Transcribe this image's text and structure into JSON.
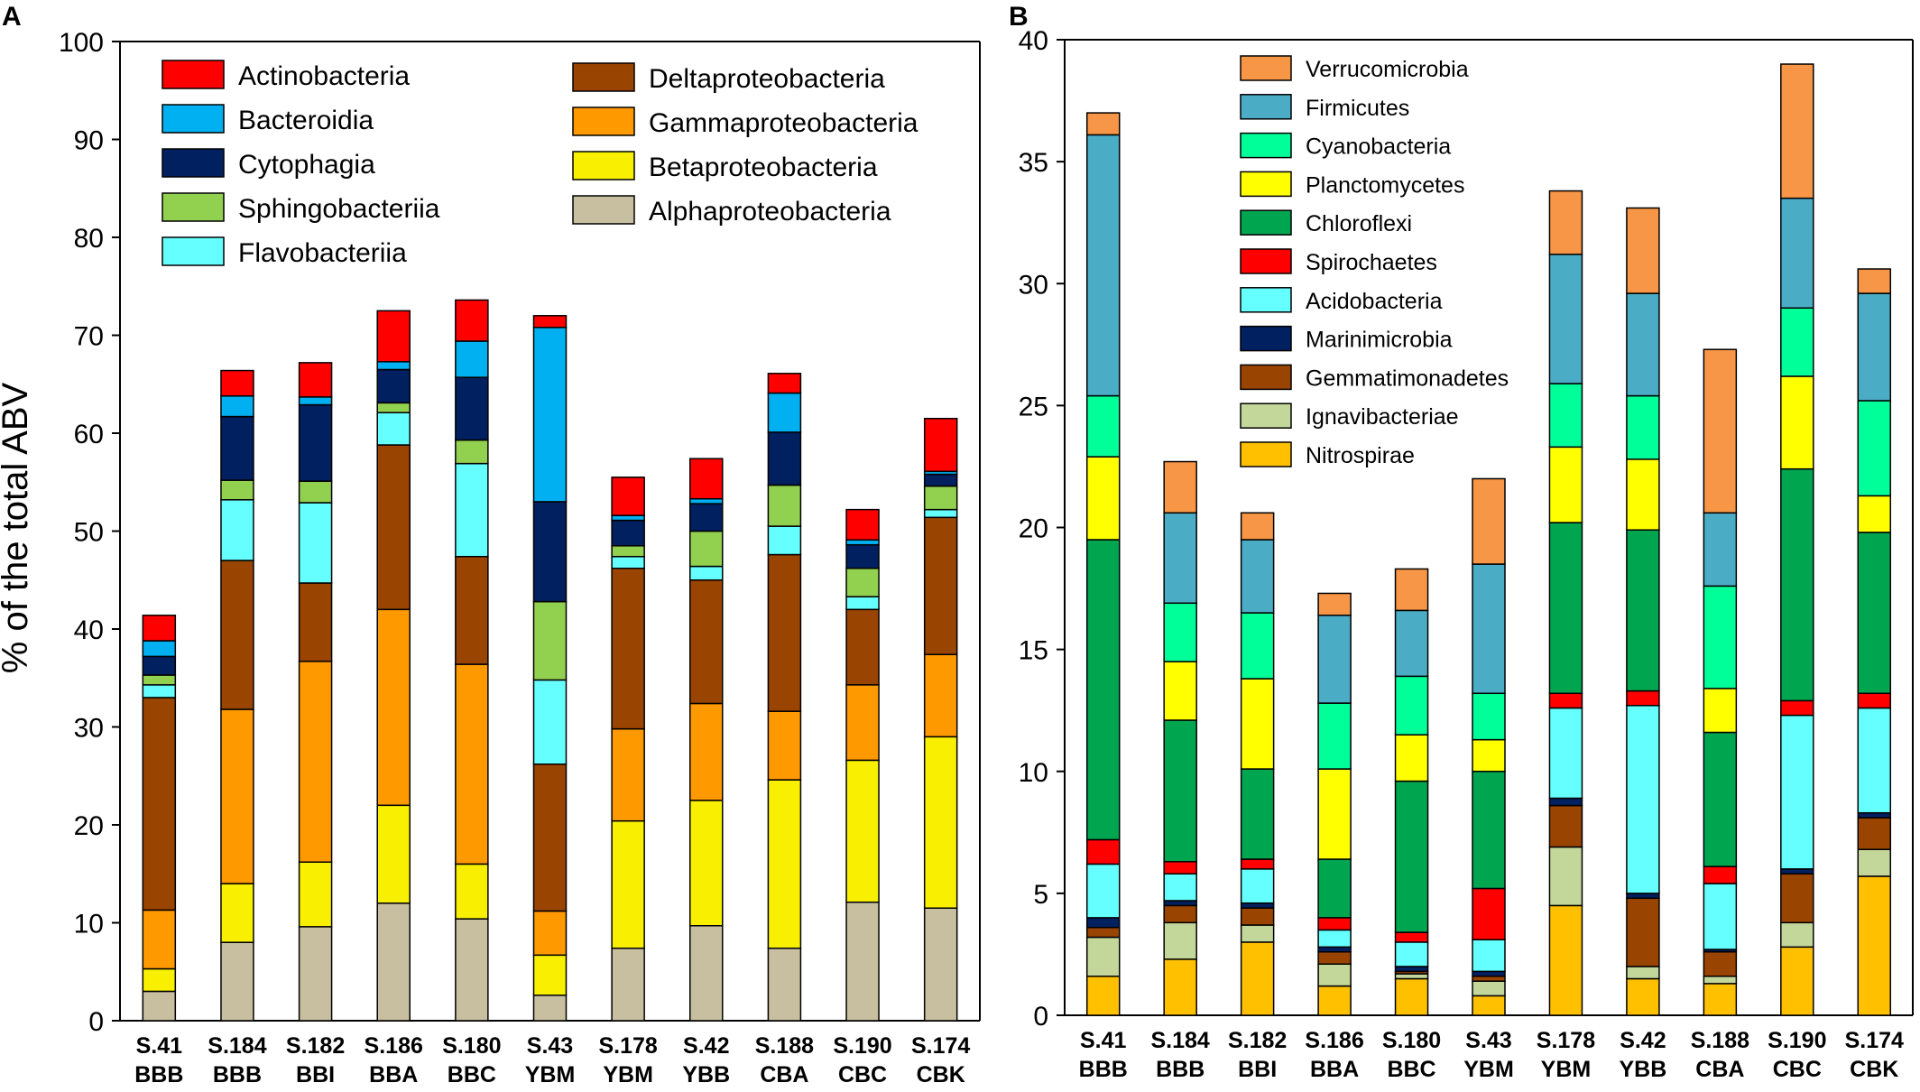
{
  "chart_data": [
    {
      "panel": "A",
      "type": "bar",
      "stacked": true,
      "ylabel": "% of the total ABV",
      "ylim": [
        0,
        100
      ],
      "yticks": [
        0,
        10,
        20,
        30,
        40,
        50,
        60,
        70,
        80,
        90,
        100
      ],
      "categories": [
        [
          "S.41",
          "BBB"
        ],
        [
          "S.184",
          "BBB"
        ],
        [
          "S.182",
          "BBI"
        ],
        [
          "S.186",
          "BBA"
        ],
        [
          "S.180",
          "BBC"
        ],
        [
          "S.43",
          "YBM"
        ],
        [
          "S.178",
          "YBM"
        ],
        [
          "S.42",
          "YBB"
        ],
        [
          "S.188",
          "CBA"
        ],
        [
          "S.190",
          "CBC"
        ],
        [
          "S.174",
          "CBK"
        ]
      ],
      "series": [
        {
          "name": "Alphaproteobacteria",
          "color": "#c8bfa0",
          "values": [
            3.0,
            8.0,
            9.6,
            12.0,
            10.4,
            2.6,
            7.4,
            9.7,
            7.4,
            12.1,
            11.5
          ]
        },
        {
          "name": "Betaproteobacteria",
          "color": "#f8f000",
          "values": [
            2.3,
            6.0,
            6.6,
            10.0,
            5.6,
            4.1,
            13.0,
            12.8,
            17.2,
            14.5,
            17.5
          ]
        },
        {
          "name": "Gammaproteobacteria",
          "color": "#ff9900",
          "values": [
            6.0,
            17.8,
            20.5,
            20.0,
            20.4,
            4.5,
            9.4,
            9.9,
            7.0,
            7.7,
            8.4
          ]
        },
        {
          "name": "Deltaproteobacteria",
          "color": "#994400",
          "values": [
            21.7,
            15.2,
            8.0,
            16.8,
            11.0,
            15.0,
            16.4,
            12.6,
            16.0,
            7.7,
            14.0
          ]
        },
        {
          "name": "Flavobacteriia",
          "color": "#66ffff",
          "values": [
            1.3,
            6.2,
            8.2,
            3.3,
            9.5,
            8.6,
            1.2,
            1.4,
            2.9,
            1.3,
            0.8
          ]
        },
        {
          "name": "Sphingobacteriia",
          "color": "#92d050",
          "values": [
            1.0,
            2.0,
            2.2,
            1.0,
            2.4,
            8.0,
            1.1,
            3.6,
            4.2,
            2.9,
            2.4
          ]
        },
        {
          "name": "Cytophagia",
          "color": "#002060",
          "values": [
            1.9,
            6.5,
            7.8,
            3.4,
            6.4,
            10.2,
            2.6,
            2.8,
            5.4,
            2.4,
            1.2
          ]
        },
        {
          "name": "Bacteroidia",
          "color": "#00b0f0",
          "values": [
            1.6,
            2.1,
            0.8,
            0.8,
            3.7,
            17.8,
            0.5,
            0.5,
            4.0,
            0.5,
            0.3
          ]
        },
        {
          "name": "Actinobacteria",
          "color": "#ff0000",
          "values": [
            2.6,
            2.6,
            3.5,
            5.2,
            4.2,
            1.2,
            3.9,
            4.1,
            2.0,
            3.1,
            5.4
          ]
        }
      ],
      "legend_col1": [
        "Actinobacteria",
        "Bacteroidia",
        "Cytophagia",
        "Sphingobacteriia",
        "Flavobacteriia"
      ],
      "legend_col2": [
        "Deltaproteobacteria",
        "Gammaproteobacteria",
        "Betaproteobacteria",
        "Alphaproteobacteria"
      ]
    },
    {
      "panel": "B",
      "type": "bar",
      "stacked": true,
      "ylim": [
        0,
        40
      ],
      "yticks": [
        0,
        5,
        10,
        15,
        20,
        25,
        30,
        35,
        40
      ],
      "categories": [
        [
          "S.41",
          "BBB"
        ],
        [
          "S.184",
          "BBB"
        ],
        [
          "S.182",
          "BBI"
        ],
        [
          "S.186",
          "BBA"
        ],
        [
          "S.180",
          "BBC"
        ],
        [
          "S.43",
          "YBM"
        ],
        [
          "S.178",
          "YBM"
        ],
        [
          "S.42",
          "YBB"
        ],
        [
          "S.188",
          "CBA"
        ],
        [
          "S.190",
          "CBC"
        ],
        [
          "S.174",
          "CBK"
        ]
      ],
      "series": [
        {
          "name": "Nitrospirae",
          "color": "#ffc000",
          "values": [
            1.6,
            2.3,
            3.0,
            1.2,
            1.5,
            0.8,
            4.5,
            1.5,
            1.3,
            2.8,
            5.7
          ]
        },
        {
          "name": "Ignavibacteriae",
          "color": "#c4d79b",
          "values": [
            1.6,
            1.5,
            0.7,
            0.9,
            0.2,
            0.6,
            2.4,
            0.5,
            0.3,
            1.0,
            1.1
          ]
        },
        {
          "name": "Gemmatimonadetes",
          "color": "#994400",
          "values": [
            0.4,
            0.7,
            0.7,
            0.5,
            0.1,
            0.2,
            1.7,
            2.8,
            1.0,
            2.0,
            1.3
          ]
        },
        {
          "name": "Marinimicrobia",
          "color": "#002060",
          "values": [
            0.4,
            0.2,
            0.2,
            0.2,
            0.2,
            0.2,
            0.3,
            0.2,
            0.1,
            0.2,
            0.2
          ]
        },
        {
          "name": "Acidobacteria",
          "color": "#66ffff",
          "values": [
            2.2,
            1.1,
            1.4,
            0.7,
            1.0,
            1.3,
            3.7,
            7.7,
            2.7,
            6.3,
            4.3
          ]
        },
        {
          "name": "Spirochaetes",
          "color": "#ff0000",
          "values": [
            1.0,
            0.5,
            0.4,
            0.5,
            0.4,
            2.1,
            0.6,
            0.6,
            0.7,
            0.6,
            0.6
          ]
        },
        {
          "name": "Chloroflexi",
          "color": "#00a550",
          "values": [
            12.3,
            5.8,
            3.7,
            2.4,
            6.2,
            4.8,
            7.0,
            6.6,
            5.5,
            9.5,
            6.6
          ]
        },
        {
          "name": "Planctomycetes",
          "color": "#ffff00",
          "values": [
            3.4,
            2.4,
            3.7,
            3.7,
            1.9,
            1.3,
            3.1,
            2.9,
            1.8,
            3.8,
            1.5
          ]
        },
        {
          "name": "Cyanobacteria",
          "color": "#00ff99",
          "values": [
            2.5,
            2.4,
            2.7,
            2.7,
            2.4,
            1.9,
            2.6,
            2.6,
            4.2,
            2.8,
            3.9
          ]
        },
        {
          "name": "Firmicutes",
          "color": "#4bacc6",
          "values": [
            10.7,
            3.7,
            3.0,
            3.6,
            2.7,
            5.3,
            5.3,
            4.2,
            3.0,
            4.5,
            4.4
          ]
        },
        {
          "name": "Verrucomicrobia",
          "color": "#f79646",
          "values": [
            0.9,
            2.1,
            1.1,
            0.9,
            1.7,
            3.5,
            2.6,
            3.5,
            6.7,
            5.5,
            1.0
          ]
        }
      ],
      "legend": [
        "Verrucomicrobia",
        "Firmicutes",
        "Cyanobacteria",
        "Planctomycetes",
        "Chloroflexi",
        "Spirochaetes",
        "Acidobacteria",
        "Marinimicrobia",
        "Gemmatimonadetes",
        "Ignavibacteriae",
        "Nitrospirae"
      ]
    }
  ]
}
